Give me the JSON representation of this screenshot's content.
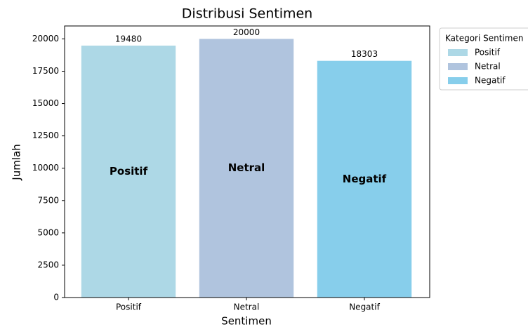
{
  "chart_data": {
    "type": "bar",
    "title": "Distribusi Sentimen",
    "x_label": "Sentimen",
    "y_label": "Jumlah",
    "categories": [
      "Positif",
      "Netral",
      "Negatif"
    ],
    "values": [
      19480,
      20000,
      18303
    ],
    "colors": [
      "#add8e6",
      "#b0c4de",
      "#87ceeb"
    ],
    "ylim": [
      0,
      21000
    ],
    "yticks": [
      0,
      2500,
      5000,
      7500,
      10000,
      12500,
      15000,
      17500,
      20000
    ],
    "grid": false,
    "legend_title": "Kategori Sentimen",
    "legend_position": "outside right"
  }
}
